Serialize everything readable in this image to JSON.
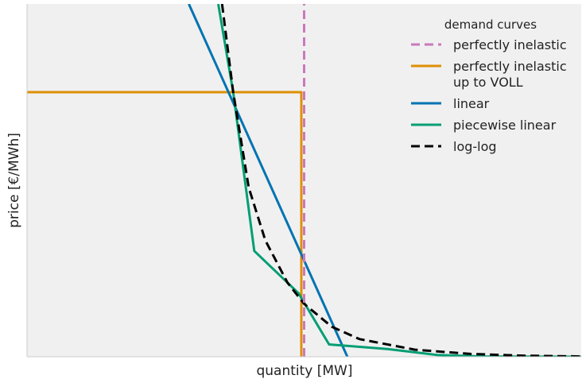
{
  "chart_data": {
    "type": "line",
    "title": "",
    "xlabel": "quantity [MW]",
    "ylabel": "price [€/MWh]",
    "xlim": [
      0,
      10
    ],
    "ylim": [
      0,
      10
    ],
    "ticks_shown": false,
    "grid": false,
    "background": "#f0f0f0",
    "legend": {
      "title": "demand curves",
      "placement": "top-right"
    },
    "series": [
      {
        "name": "perfectly inelastic",
        "color": "#cc78bc",
        "dash": "dashed",
        "x": [
          5.0,
          5.0
        ],
        "y": [
          0.0,
          10.0
        ]
      },
      {
        "name": "perfectly inelastic up to VOLL",
        "legend_lines": [
          "perfectly inelastic",
          "up to VOLL"
        ],
        "color": "#de8f05",
        "dash": "solid",
        "x": [
          0.0,
          4.95,
          4.95
        ],
        "y": [
          7.5,
          7.5,
          0.0
        ]
      },
      {
        "name": "linear",
        "color": "#0173b2",
        "dash": "solid",
        "x": [
          2.92,
          5.78
        ],
        "y": [
          10.0,
          0.0
        ]
      },
      {
        "name": "piecewise linear",
        "color": "#029e73",
        "dash": "solid",
        "x": [
          3.45,
          3.72,
          4.1,
          4.9,
          5.45,
          6.5,
          7.4,
          8.2,
          10.0
        ],
        "y": [
          10.0,
          7.5,
          3.0,
          1.8,
          0.35,
          0.22,
          0.05,
          0.01,
          0.0
        ],
        "x_fixed": true
      },
      {
        "name": "log-log",
        "color": "#000000",
        "dash": "dashed",
        "x": [
          3.52,
          3.6,
          3.72,
          4.0,
          4.3,
          4.7,
          5.0,
          5.5,
          6.0,
          7.0,
          8.0,
          9.0,
          10.0
        ],
        "y": [
          10.0,
          9.0,
          7.5,
          4.8,
          3.3,
          2.1,
          1.5,
          0.85,
          0.5,
          0.2,
          0.08,
          0.03,
          0.01
        ]
      }
    ]
  }
}
